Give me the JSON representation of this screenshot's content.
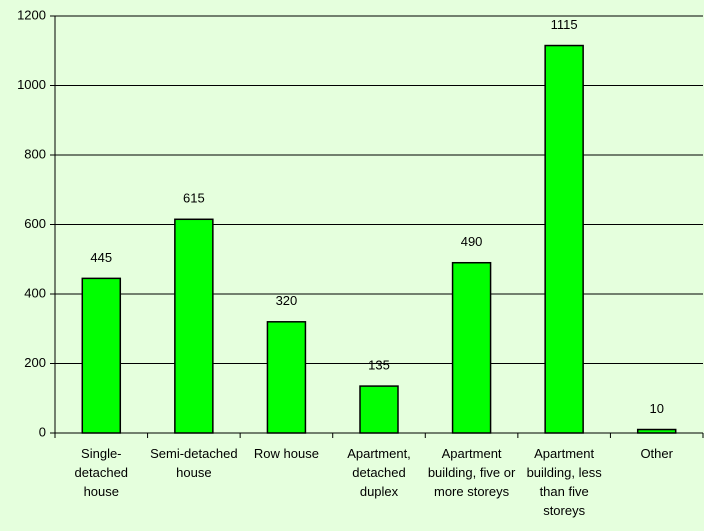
{
  "chart_data": {
    "type": "bar",
    "categories": [
      "Single-detached house",
      "Semi-detached house",
      "Row house",
      "Apartment, detached duplex",
      "Apartment building, five or more storeys",
      "Apartment building, less than five storeys",
      "Other"
    ],
    "values": [
      445,
      615,
      320,
      135,
      490,
      1115,
      10
    ],
    "color": "#00ff00",
    "ylim": [
      0,
      1200
    ],
    "yticks": [
      0,
      200,
      400,
      600,
      800,
      1000,
      1200
    ],
    "grid": true
  }
}
